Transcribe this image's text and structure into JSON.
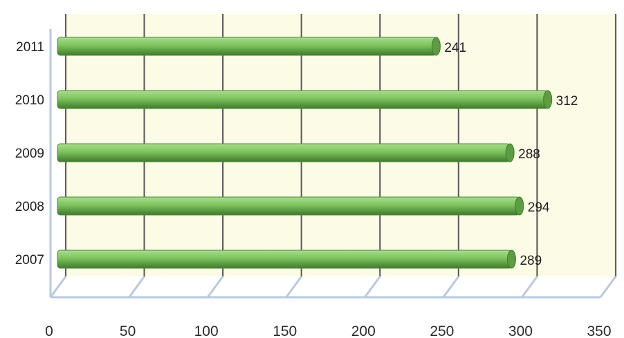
{
  "chart_data": {
    "type": "bar",
    "orientation": "horizontal",
    "style": "3d",
    "categories": [
      "2011",
      "2010",
      "2009",
      "2008",
      "2007"
    ],
    "values": [
      241,
      312,
      288,
      294,
      289
    ],
    "data_labels": [
      "241",
      "312",
      "288",
      "294",
      "289"
    ],
    "x_ticks": [
      "0",
      "50",
      "100",
      "150",
      "200",
      "250",
      "300",
      "350"
    ],
    "xlim": [
      0,
      350
    ],
    "grid": true,
    "legend": "none",
    "colors": {
      "bar_top": "#a9dd8e",
      "bar_mid": "#7dc35d",
      "bar_bottom": "#3f7a2c",
      "bar_cap": "#5e9c43",
      "grid": "#5f5f5f",
      "floor": "#b9c8e2",
      "wall": "#fcfce6"
    }
  }
}
